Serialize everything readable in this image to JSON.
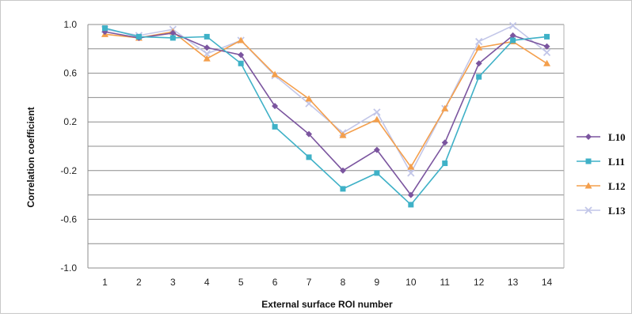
{
  "chart_data": {
    "type": "line",
    "title": "",
    "xlabel": "External surface  ROI number",
    "ylabel": "Correlation coefficient",
    "x": [
      1,
      2,
      3,
      4,
      5,
      6,
      7,
      8,
      9,
      10,
      11,
      12,
      13,
      14
    ],
    "ylim": [
      -1.0,
      1.0
    ],
    "yticks": [
      1.0,
      0.6,
      0.2,
      -0.2,
      -0.6,
      -1.0
    ],
    "ytick_labels": [
      "1.0",
      "0.6",
      "0.2",
      "-0.2",
      "-0.6",
      "-1.0"
    ],
    "grid": true,
    "legend_position": "right",
    "series": [
      {
        "name": "L10",
        "color": "#7b559f",
        "marker": "diamond",
        "values": [
          0.94,
          0.89,
          0.93,
          0.81,
          0.75,
          0.33,
          0.1,
          -0.2,
          -0.03,
          -0.4,
          0.03,
          0.68,
          0.91,
          0.82
        ]
      },
      {
        "name": "L11",
        "color": "#3fb1c7",
        "marker": "square",
        "values": [
          0.97,
          0.9,
          0.89,
          0.9,
          0.68,
          0.16,
          -0.09,
          -0.35,
          -0.22,
          -0.48,
          -0.14,
          0.57,
          0.87,
          0.9
        ]
      },
      {
        "name": "L12",
        "color": "#f49f4c",
        "marker": "triangle",
        "values": [
          0.92,
          0.89,
          0.94,
          0.72,
          0.87,
          0.59,
          0.39,
          0.09,
          0.22,
          -0.17,
          0.31,
          0.81,
          0.86,
          0.68
        ]
      },
      {
        "name": "L13",
        "color": "#c2c6e8",
        "marker": "x",
        "values": [
          0.96,
          0.91,
          0.96,
          0.76,
          0.87,
          0.58,
          0.35,
          0.11,
          0.28,
          -0.22,
          0.31,
          0.86,
          0.99,
          0.77
        ]
      }
    ]
  }
}
